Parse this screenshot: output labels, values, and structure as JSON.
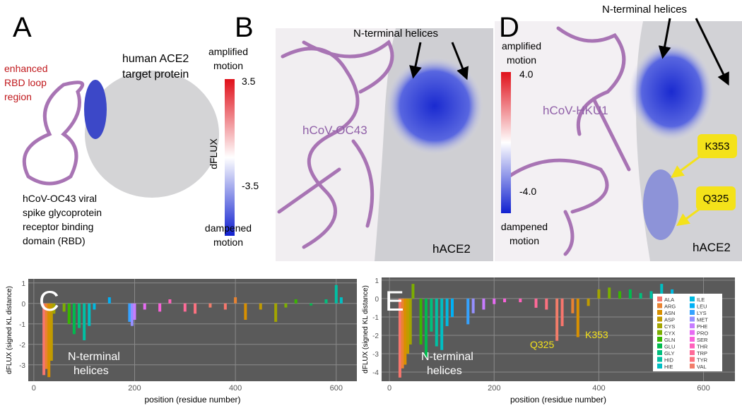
{
  "panel_a": {
    "label": "A",
    "loop_note": [
      "enhanced",
      "RBD loop",
      "region"
    ],
    "target": [
      "human ACE2",
      "target protein"
    ],
    "rbd_note": [
      "hCoV-OC43 viral",
      "spike glycoprotein",
      "receptor binding",
      "domain (RBD)"
    ]
  },
  "panel_b": {
    "label": "B",
    "arrow_note": "N-terminal helices",
    "top_note": [
      "amplified",
      "motion"
    ],
    "max": "3.5",
    "axis": "dFLUX",
    "min": "-3.5",
    "bottom_note": [
      "dampened",
      "motion"
    ],
    "virus": "hCoV-OC43",
    "host": "hACE2"
  },
  "panel_d": {
    "label": "D",
    "arrow_note": "N-terminal helices",
    "top_note": [
      "amplified",
      "motion"
    ],
    "max": "4.0",
    "min": "-4.0",
    "bottom_note": [
      "dampened",
      "motion"
    ],
    "virus": "hCoV-HKU1",
    "site1": "K353",
    "site2": "Q325",
    "host": "hACE2"
  },
  "chart_data": [
    {
      "type": "bar",
      "label": "C",
      "y_label": "dFLUX (signed KL distance)",
      "x_label": "position (residue number)",
      "annotation": [
        "N-terminal",
        "helices"
      ],
      "x": [
        20,
        25,
        30,
        35,
        40,
        60,
        70,
        80,
        90,
        100,
        110,
        120,
        150,
        190,
        195,
        200,
        220,
        250,
        270,
        300,
        320,
        350,
        380,
        400,
        420,
        450,
        480,
        500,
        520,
        550,
        580,
        600,
        610
      ],
      "values": [
        -3.5,
        -3.2,
        -3.6,
        -2.8,
        -0.5,
        -0.4,
        -1.0,
        -1.5,
        -1.2,
        -1.8,
        -1.1,
        -0.3,
        0.3,
        -0.9,
        -1.1,
        -0.8,
        -0.3,
        -0.4,
        0.2,
        -0.4,
        -0.5,
        -0.2,
        -0.3,
        0.3,
        -0.8,
        -0.3,
        -0.9,
        -0.2,
        0.2,
        -0.1,
        0.2,
        0.9,
        0.3
      ],
      "xlim": [
        -11,
        641
      ],
      "xticks": [
        0,
        200,
        400,
        600
      ],
      "ylim": [
        -3.8,
        1.2
      ],
      "yticks": [
        -3,
        -2,
        -1,
        0,
        1
      ],
      "grid": true
    },
    {
      "type": "bar",
      "label": "E",
      "y_label": "dFLUX (signed KL distance)",
      "x_label": "position (residue number)",
      "annotation": [
        "N-terminal",
        "helices"
      ],
      "site_labels": [
        "Q325",
        "K353"
      ],
      "x": [
        20,
        25,
        30,
        35,
        40,
        45,
        60,
        70,
        80,
        90,
        100,
        110,
        120,
        150,
        160,
        180,
        200,
        220,
        250,
        280,
        300,
        320,
        330,
        350,
        360,
        380,
        400,
        420,
        440,
        460,
        480,
        500,
        520,
        540,
        560
      ],
      "values": [
        -4.3,
        -3.8,
        -3.6,
        -3,
        -2.5,
        0.8,
        -2.5,
        -3.2,
        -1.8,
        -2.6,
        -2.8,
        -1.5,
        -1,
        -1.4,
        -0.8,
        -0.6,
        -0.3,
        -0.2,
        -0.2,
        -0.5,
        -0.6,
        -2.3,
        -1.5,
        -0.8,
        -2.1,
        -0.4,
        0.5,
        0.6,
        0.4,
        0.5,
        0.3,
        0.4,
        0.8,
        0.5,
        0.2
      ],
      "xlim": [
        -15,
        660
      ],
      "xticks": [
        0,
        200,
        400,
        600
      ],
      "ylim": [
        -4.5,
        1.15
      ],
      "yticks": [
        -4,
        -3,
        -2,
        -1,
        0,
        1
      ],
      "grid": true,
      "legend": [
        {
          "name": "ALA",
          "color": "#f8766d"
        },
        {
          "name": "ARG",
          "color": "#ea8331"
        },
        {
          "name": "ASN",
          "color": "#d89000"
        },
        {
          "name": "ASP",
          "color": "#c09b00"
        },
        {
          "name": "CYS",
          "color": "#a3a500"
        },
        {
          "name": "CYX",
          "color": "#7cae00"
        },
        {
          "name": "GLN",
          "color": "#39b600"
        },
        {
          "name": "GLU",
          "color": "#00bb4e"
        },
        {
          "name": "GLY",
          "color": "#00bf7d"
        },
        {
          "name": "HID",
          "color": "#00c1a3"
        },
        {
          "name": "HIE",
          "color": "#00bfc4"
        },
        {
          "name": "ILE",
          "color": "#00bae0"
        },
        {
          "name": "LEU",
          "color": "#00b0f6"
        },
        {
          "name": "LYS",
          "color": "#35a2ff"
        },
        {
          "name": "MET",
          "color": "#9590ff"
        },
        {
          "name": "PHE",
          "color": "#c77cff"
        },
        {
          "name": "PRO",
          "color": "#e76bf3"
        },
        {
          "name": "SER",
          "color": "#fa62db"
        },
        {
          "name": "THR",
          "color": "#ff62bc"
        },
        {
          "name": "TRP",
          "color": "#ff6a98"
        },
        {
          "name": "TYR",
          "color": "#fc717f"
        },
        {
          "name": "VAL",
          "color": "#f27d6a"
        }
      ]
    }
  ]
}
